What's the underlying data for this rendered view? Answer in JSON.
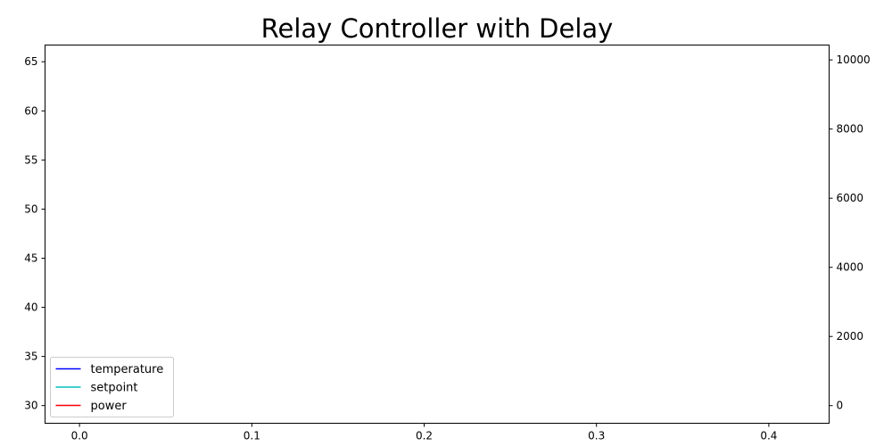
{
  "chart_data": {
    "type": "line",
    "title": "Relay Controller with Delay",
    "xlabel": "",
    "ylabel": "",
    "y2label": "",
    "xlim": [
      -0.02,
      0.435
    ],
    "ylim": [
      28.2,
      66.7
    ],
    "y2lim": [
      -510,
      10430
    ],
    "x_ticks": [
      "0.0",
      "0.1",
      "0.2",
      "0.3",
      "0.4"
    ],
    "y_ticks": [
      "30",
      "35",
      "40",
      "45",
      "50",
      "55",
      "60",
      "65"
    ],
    "y2_ticks": [
      "0",
      "2000",
      "4000",
      "6000",
      "8000",
      "10000"
    ],
    "grid": false,
    "legend_position": "lower-left",
    "series": [
      {
        "name": "temperature",
        "color": "#0000ff",
        "axis": "left",
        "values": []
      },
      {
        "name": "setpoint",
        "color": "#00bfbf",
        "axis": "left",
        "values": []
      },
      {
        "name": "power",
        "color": "#ff0000",
        "axis": "right",
        "values": []
      }
    ]
  }
}
